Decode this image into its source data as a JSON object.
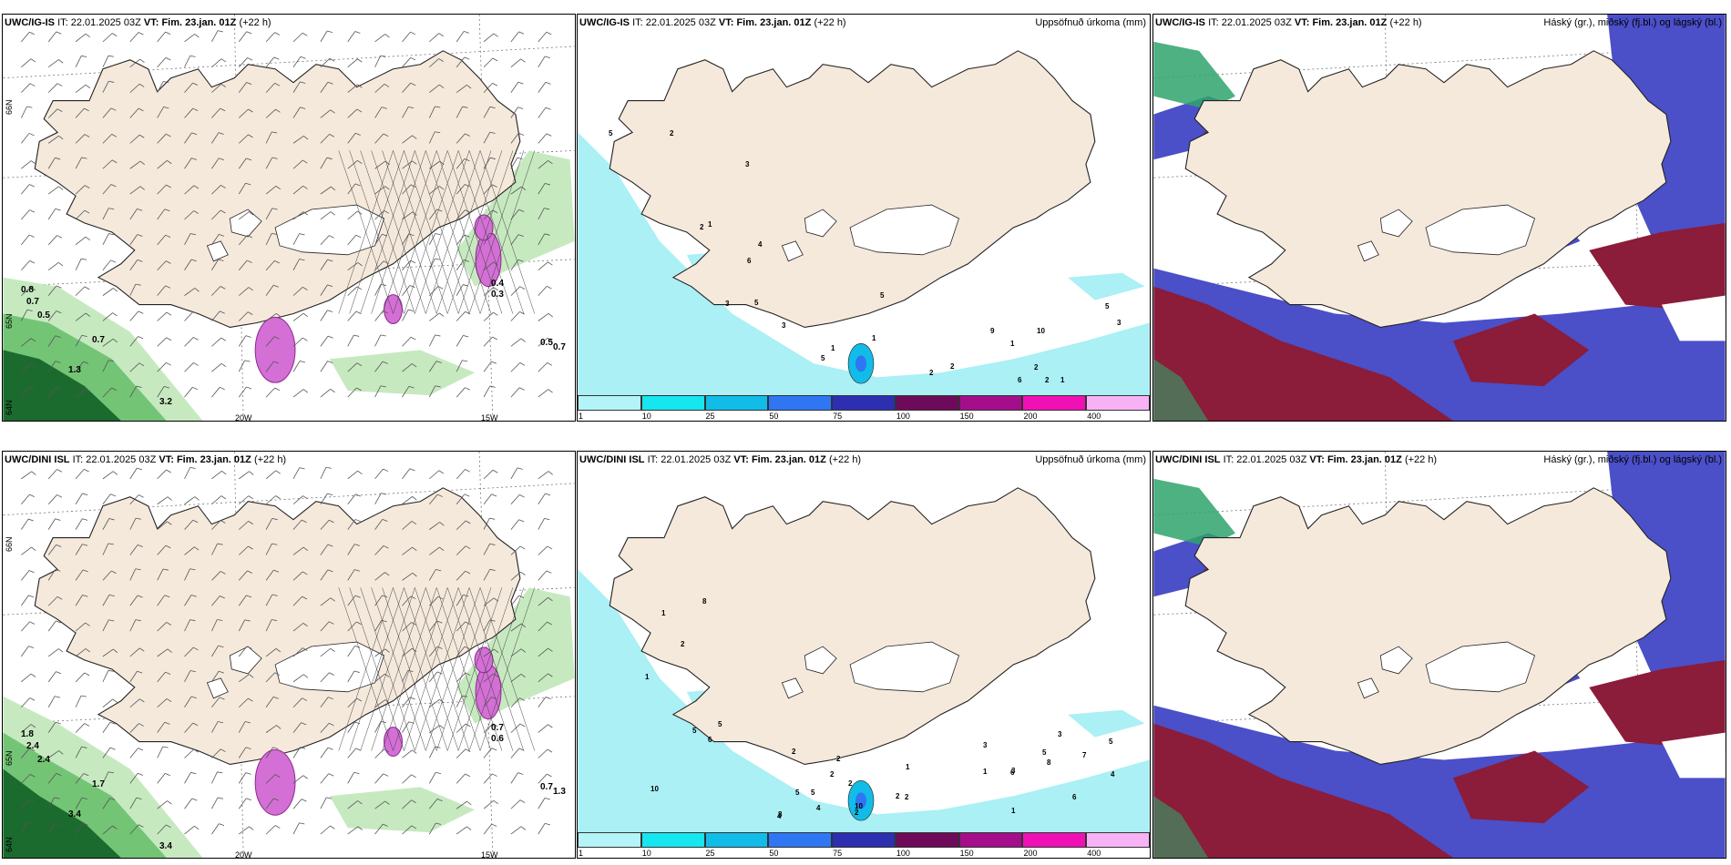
{
  "colors": {
    "land": "#f5e9dc",
    "sea": "#ffffff",
    "coast": "#222222",
    "green_light": "#c7e9c0",
    "green_mid": "#74c476",
    "green_dark": "#1b6b2f",
    "magenta": "#d46fd6",
    "cyan": "#aaf0f5",
    "high_cloud": "#2fa36b",
    "mid_cloud": "#8b1c3a",
    "low_cloud": "#4b4fc8"
  },
  "rows": [
    {
      "model": "UWC/IG-IS",
      "it_label": "IT:",
      "it_value": "22.01.2025 03Z",
      "vt_label": "VT:",
      "vt_value": "Fim. 23.jan. 01Z",
      "lead": "(+22 h)",
      "precip_title": "Uppsöfnuð úrkoma (mm)",
      "cloud_title": "Háský (gr.), miðský (fj.bl.) og lágský (bl.)",
      "lon_labels": [
        "20W",
        "15W"
      ],
      "lat_labels": [
        "66N",
        "65N",
        "64N"
      ],
      "wind_values": [
        "0.8",
        "0.7",
        "0.5",
        "0.7",
        "1.3",
        "3.2",
        "0.5",
        "0.7",
        "0.4",
        "0.3"
      ],
      "precip_values": [
        "1",
        "2",
        "2",
        "1",
        "1",
        "3",
        "5",
        "6",
        "5",
        "9",
        "10",
        "5",
        "5",
        "6",
        "4",
        "2",
        "1",
        "3",
        "5",
        "3",
        "2",
        "1",
        "2",
        "3",
        "2"
      ]
    },
    {
      "model": "UWC/DINI ISL",
      "it_label": "IT:",
      "it_value": "22.01.2025 03Z",
      "vt_label": "VT:",
      "vt_value": "Fim. 23.jan. 01Z",
      "lead": "(+22 h)",
      "precip_title": "Uppsöfnuð úrkoma (mm)",
      "cloud_title": "Háský (gr.), miðský (fj.bl.) og lágský (bl.)",
      "lon_labels": [
        "20W",
        "15W"
      ],
      "lat_labels": [
        "66N",
        "65N",
        "64N"
      ],
      "wind_values": [
        "1.8",
        "2.4",
        "2.4",
        "1.7",
        "3.4",
        "3.4",
        "0.7",
        "1.3",
        "0.7",
        "0.6"
      ],
      "precip_values": [
        "1",
        "1",
        "3",
        "2",
        "10",
        "2",
        "2",
        "5",
        "5",
        "4",
        "6",
        "8",
        "8",
        "7",
        "10",
        "5",
        "2",
        "2",
        "1",
        "1",
        "2",
        "1",
        "5",
        "6",
        "5",
        "6",
        "4",
        "2",
        "3",
        "5",
        "8",
        "2",
        "4",
        "3"
      ]
    }
  ],
  "colorbar": {
    "ticks": [
      "1",
      "10",
      "25",
      "50",
      "75",
      "100",
      "150",
      "200",
      "400"
    ],
    "colors": [
      "#b3f4f9",
      "#16e6ef",
      "#11bce8",
      "#2f76f2",
      "#2b2fb0",
      "#6e0a5a",
      "#a40e8b",
      "#f011b4",
      "#f7b2f5"
    ]
  }
}
